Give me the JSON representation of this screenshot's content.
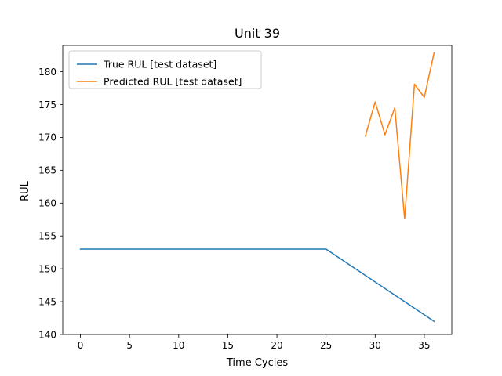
{
  "chart_data": {
    "type": "line",
    "title": "Unit 39",
    "xlabel": "Time Cycles",
    "ylabel": "RUL",
    "xlim": [
      -1.8,
      37.8
    ],
    "ylim": [
      140,
      184
    ],
    "xticks": [
      0,
      5,
      10,
      15,
      20,
      25,
      30,
      35
    ],
    "yticks": [
      140,
      145,
      150,
      155,
      160,
      165,
      170,
      175,
      180
    ],
    "grid": false,
    "legend_position": "top-left",
    "series": [
      {
        "name": "True RUL [test dataset]",
        "color": "#1f77b4",
        "x": [
          0,
          25,
          36
        ],
        "y": [
          153,
          153,
          142
        ]
      },
      {
        "name": "Predicted RUL [test dataset]",
        "color": "#ff7f0e",
        "x": [
          29,
          30,
          31,
          32,
          33,
          34,
          35,
          36
        ],
        "y": [
          170.2,
          175.4,
          170.4,
          174.5,
          157.6,
          178.1,
          176.1,
          182.9
        ]
      }
    ]
  }
}
